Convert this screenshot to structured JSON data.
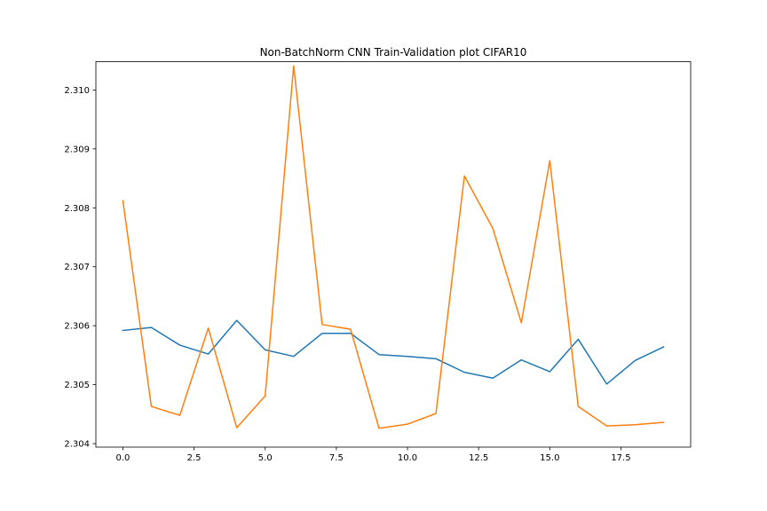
{
  "chart_data": {
    "type": "line",
    "title": "Non-BatchNorm CNN Train-Validation plot CIFAR10",
    "xlabel": "",
    "ylabel": "",
    "xlim": [
      -0.95,
      19.95
    ],
    "ylim": [
      2.30394,
      2.31048
    ],
    "xticks": [
      0.0,
      2.5,
      5.0,
      7.5,
      10.0,
      12.5,
      15.0,
      17.5
    ],
    "xtick_labels": [
      "0.0",
      "2.5",
      "5.0",
      "7.5",
      "10.0",
      "12.5",
      "15.0",
      "17.5"
    ],
    "yticks": [
      2.304,
      2.305,
      2.306,
      2.307,
      2.308,
      2.309,
      2.31
    ],
    "ytick_labels": [
      "2.304",
      "2.305",
      "2.306",
      "2.307",
      "2.308",
      "2.309",
      "2.310"
    ],
    "grid": false,
    "x": [
      0,
      1,
      2,
      3,
      4,
      5,
      6,
      7,
      8,
      9,
      10,
      11,
      12,
      13,
      14,
      15,
      16,
      17,
      18,
      19
    ],
    "series": [
      {
        "color": "#1f77b4",
        "values": [
          2.30592,
          2.30597,
          2.30567,
          2.30552,
          2.30609,
          2.30559,
          2.30548,
          2.30587,
          2.30587,
          2.30551,
          2.30548,
          2.30544,
          2.30521,
          2.30511,
          2.30542,
          2.30522,
          2.30577,
          2.30501,
          2.30541,
          2.30564
        ]
      },
      {
        "color": "#ff7f0e",
        "values": [
          2.30812,
          2.30463,
          2.30448,
          2.30596,
          2.30427,
          2.30481,
          2.31041,
          2.30602,
          2.30594,
          2.30426,
          2.30433,
          2.30451,
          2.30854,
          2.30765,
          2.30605,
          2.3088,
          2.30463,
          2.3043,
          2.30432,
          2.30436
        ]
      }
    ]
  }
}
